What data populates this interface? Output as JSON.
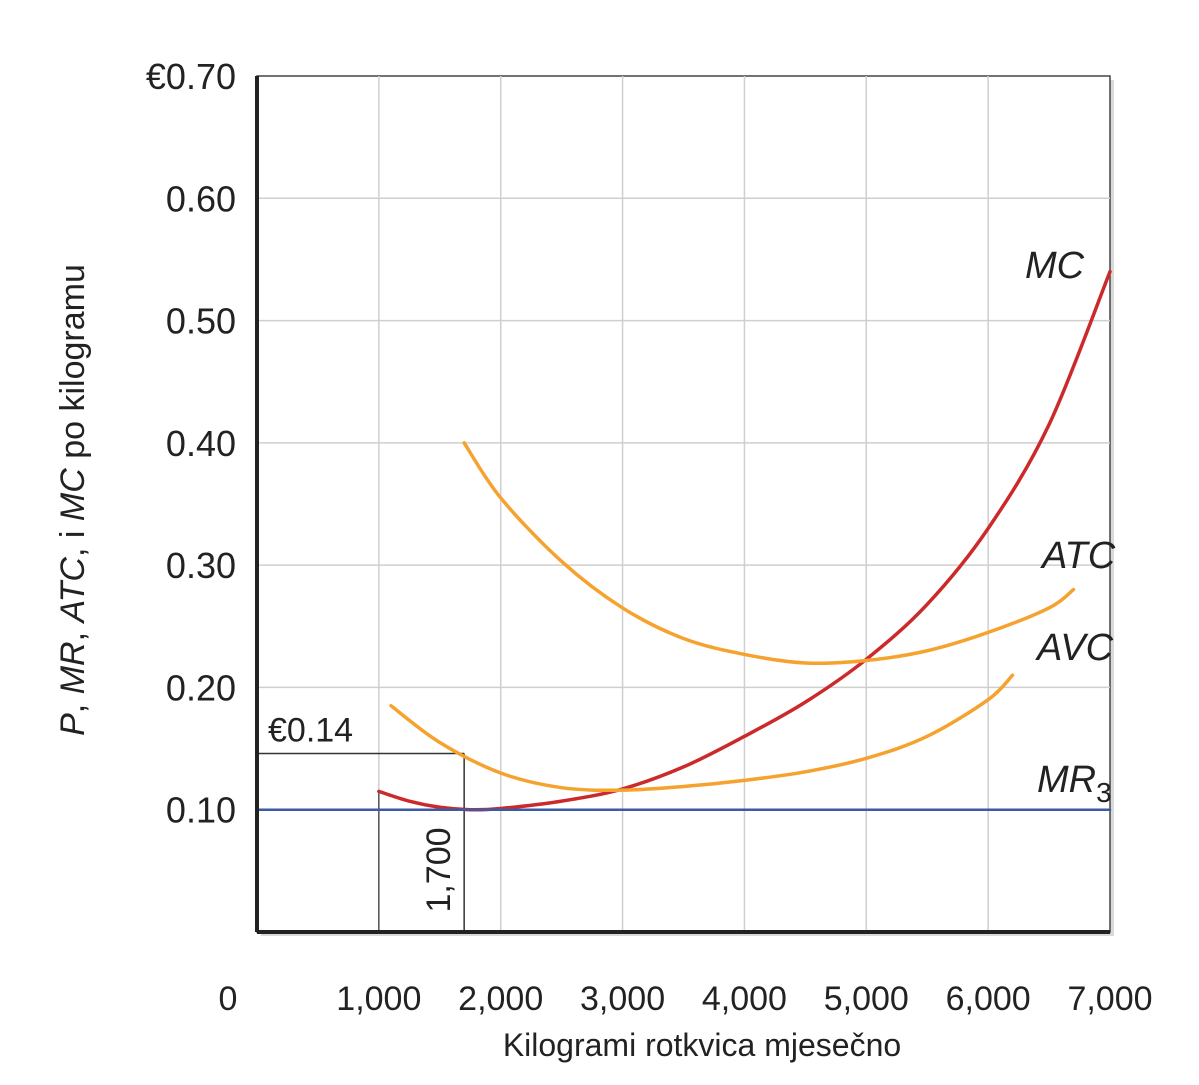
{
  "chart_data": {
    "type": "line",
    "title": "",
    "xlabel": "Kilogrami rotkvica mjesečno",
    "ylabel_parts": [
      "P",
      ", ",
      "MR",
      ", ",
      "ATC",
      ", i ",
      "MC",
      " po kilogramu"
    ],
    "xlim": [
      0,
      7000
    ],
    "ylim": [
      0,
      0.7
    ],
    "x_ticks": [
      0,
      1000,
      2000,
      3000,
      4000,
      5000,
      6000,
      7000
    ],
    "x_tick_labels": [
      "0",
      "1,000",
      "2,000",
      "3,000",
      "4,000",
      "5,000",
      "6,000",
      "7,000"
    ],
    "y_ticks": [
      0.7,
      0.6,
      0.5,
      0.4,
      0.3,
      0.2,
      0.1
    ],
    "y_tick_labels": [
      "€0.70",
      "0.60",
      "0.50",
      "0.40",
      "0.30",
      "0.20",
      "0.10"
    ],
    "grid": true,
    "colors": {
      "MC": "#cc2a2a",
      "ATC": "#f5a22e",
      "AVC": "#f5a22e",
      "MR3": "#3a5aa6",
      "grid": "#cfcfcf",
      "axis": "#222222",
      "guide": "#333333"
    },
    "series": [
      {
        "name": "MC",
        "x": [
          1000,
          1250,
          1500,
          1750,
          2000,
          2500,
          3000,
          3500,
          4000,
          4500,
          5000,
          5500,
          6000,
          6500,
          7000
        ],
        "y": [
          0.115,
          0.107,
          0.102,
          0.1,
          0.101,
          0.107,
          0.117,
          0.135,
          0.16,
          0.188,
          0.223,
          0.268,
          0.33,
          0.415,
          0.54
        ]
      },
      {
        "name": "ATC",
        "x": [
          1700,
          2000,
          2500,
          3000,
          3500,
          4000,
          4500,
          5000,
          5500,
          6000,
          6500,
          6700
        ],
        "y": [
          0.4,
          0.355,
          0.303,
          0.265,
          0.24,
          0.227,
          0.22,
          0.222,
          0.23,
          0.245,
          0.265,
          0.28
        ]
      },
      {
        "name": "AVC",
        "x": [
          1100,
          1500,
          2000,
          2500,
          3000,
          3500,
          4000,
          4500,
          5000,
          5500,
          6000,
          6200
        ],
        "y": [
          0.185,
          0.155,
          0.13,
          0.118,
          0.116,
          0.119,
          0.124,
          0.131,
          0.142,
          0.16,
          0.19,
          0.21
        ]
      },
      {
        "name": "MR",
        "name_sub": "3",
        "x": [
          0,
          7000
        ],
        "y": [
          0.1,
          0.1
        ]
      }
    ],
    "annotations": [
      {
        "text": "€0.14",
        "x": 1700,
        "y": 0.146
      },
      {
        "text": "1,700",
        "x": 1700,
        "y": 0.1
      }
    ]
  }
}
